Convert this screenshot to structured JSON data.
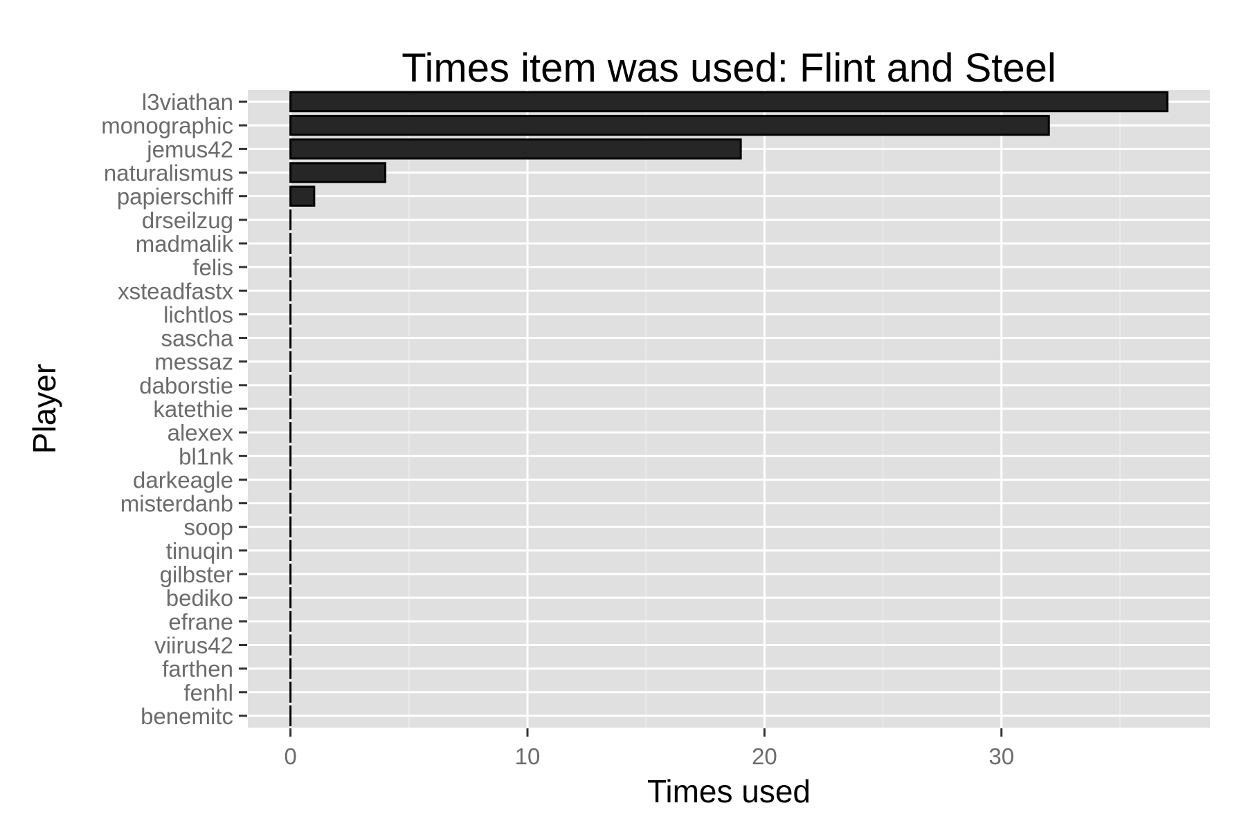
{
  "chart_data": {
    "type": "bar",
    "orientation": "horizontal",
    "title": "Times item was used: Flint and Steel",
    "xlabel": "Times used",
    "ylabel": "Player",
    "categories": [
      "l3viathan",
      "monographic",
      "jemus42",
      "naturalismus",
      "papierschiff",
      "drseilzug",
      "madmalik",
      "felis",
      "xsteadfastx",
      "lichtlos",
      "sascha",
      "messaz",
      "daborstie",
      "katethie",
      "alexex",
      "bl1nk",
      "darkeagle",
      "misterdanb",
      "soop",
      "tinuqin",
      "gilbster",
      "bediko",
      "efrane",
      "viirus42",
      "farthen",
      "fenhl",
      "benemitc"
    ],
    "values": [
      37,
      32,
      19,
      4,
      1,
      0,
      0,
      0,
      0,
      0,
      0,
      0,
      0,
      0,
      0,
      0,
      0,
      0,
      0,
      0,
      0,
      0,
      0,
      0,
      0,
      0,
      0
    ],
    "xlim": [
      -1.8,
      38.8
    ],
    "xticks": [
      0,
      10,
      20,
      30
    ],
    "xtick_labels": [
      "0",
      "10",
      "20",
      "30"
    ],
    "grid": true,
    "legend": "none",
    "colors": {
      "panel_background": "#e0e0e0",
      "grid_major": "#ffffff",
      "grid_minor": "#ececec",
      "bar_fill": "#262626",
      "bar_outline": "#000000",
      "tick_label": "#6b6b6b",
      "tick_mark": "#333333"
    }
  }
}
